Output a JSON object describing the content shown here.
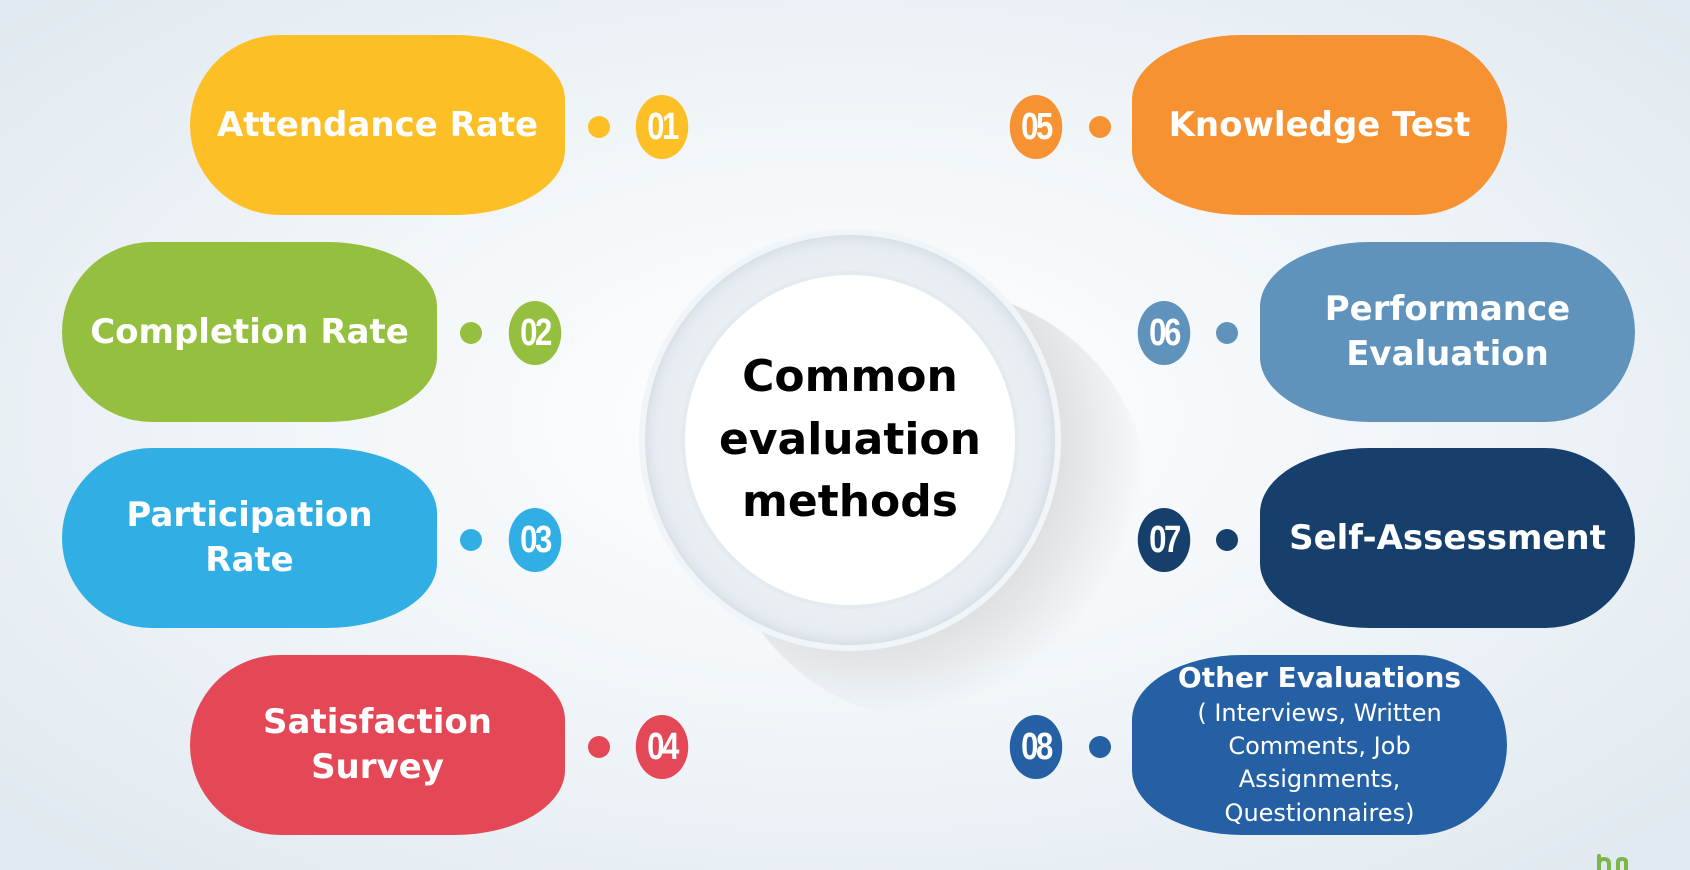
{
  "center": {
    "lines": [
      "Common",
      "evaluation",
      "methods"
    ]
  },
  "methods": [
    {
      "number": "01",
      "label": "Attendance Rate",
      "color": "#FDBF26"
    },
    {
      "number": "02",
      "label": "Completion Rate",
      "color": "#95BF3E"
    },
    {
      "number": "03",
      "label": "Participation Rate",
      "color": "#31AFE4"
    },
    {
      "number": "04",
      "label": "Satisfaction Survey",
      "color": "#E44856"
    },
    {
      "number": "05",
      "label": "Knowledge Test",
      "color": "#F69232"
    },
    {
      "number": "06",
      "label_lines": [
        "Performance",
        "Evaluation"
      ],
      "color": "#5F93BB"
    },
    {
      "number": "07",
      "label": "Self-Assessment",
      "color": "#163F6C"
    },
    {
      "number": "08",
      "title": "Other Evaluations",
      "sub_lines": [
        "( Interviews, Written",
        "Comments, Job Assignments,",
        "Questionnaires)"
      ],
      "color": "#2560A5"
    }
  ],
  "logo_color": "#7AB648"
}
